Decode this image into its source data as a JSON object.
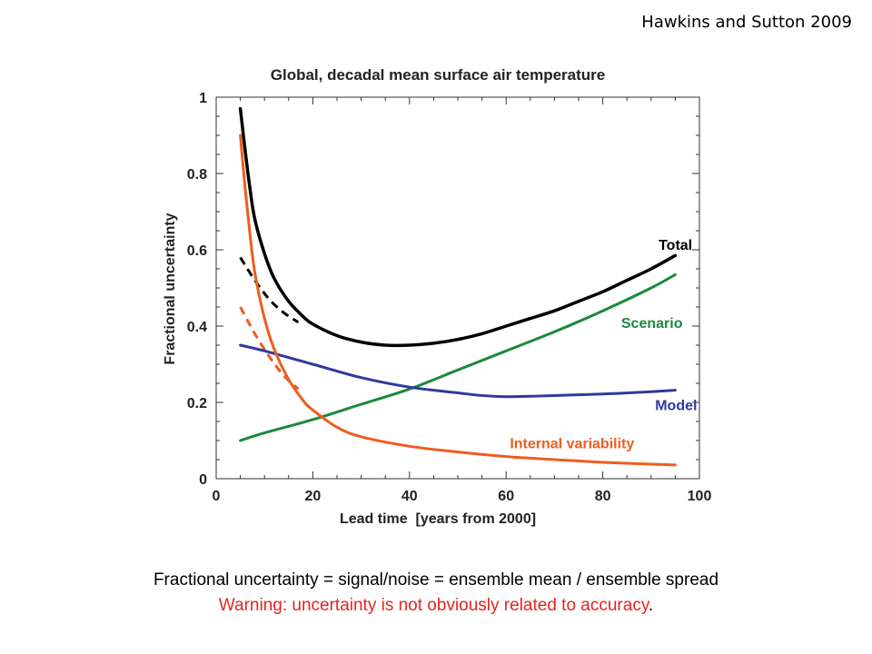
{
  "citation": "Hawkins and Sutton 2009",
  "captions": {
    "line1": "Fractional uncertainty = signal/noise = ensemble mean / ensemble spread",
    "line2": "Warning: uncertainty is not obviously related to accuracy",
    "line2_end": "."
  },
  "colors": {
    "total": "#000000",
    "scenario": "#1a8a3c",
    "model": "#2e3a9e",
    "internal": "#ee5d1f",
    "warning": "#e8231e"
  },
  "chart_data": {
    "type": "line",
    "title": "Global, decadal mean surface air temperature",
    "xlabel": "Lead time  [years from 2000]",
    "ylabel": "Fractional uncertainty",
    "xlim": [
      0,
      100
    ],
    "ylim": [
      0,
      1
    ],
    "xticks": [
      0,
      20,
      40,
      60,
      80,
      100
    ],
    "yticks": [
      0,
      0.2,
      0.4,
      0.6,
      0.8,
      1
    ],
    "xtick_labels": [
      "0",
      "20",
      "40",
      "60",
      "80",
      "100"
    ],
    "ytick_labels": [
      "0",
      "0.2",
      "0.4",
      "0.6",
      "0.8",
      "1"
    ],
    "grid": false,
    "series": [
      {
        "name": "Total",
        "color_key": "total",
        "x": [
          5,
          6,
          7,
          8,
          10,
          12,
          15,
          18,
          20,
          25,
          30,
          35,
          40,
          45,
          50,
          55,
          60,
          65,
          70,
          75,
          80,
          85,
          90,
          95
        ],
        "y": [
          0.97,
          0.86,
          0.76,
          0.68,
          0.59,
          0.525,
          0.465,
          0.425,
          0.405,
          0.375,
          0.358,
          0.35,
          0.35,
          0.355,
          0.365,
          0.38,
          0.4,
          0.42,
          0.44,
          0.465,
          0.49,
          0.52,
          0.55,
          0.585
        ]
      },
      {
        "name": "Scenario",
        "color_key": "scenario",
        "x": [
          5,
          10,
          20,
          30,
          40,
          50,
          60,
          70,
          80,
          90,
          95
        ],
        "y": [
          0.1,
          0.12,
          0.155,
          0.195,
          0.235,
          0.285,
          0.335,
          0.385,
          0.44,
          0.5,
          0.535
        ]
      },
      {
        "name": "Model",
        "color_key": "model",
        "x": [
          5,
          10,
          20,
          30,
          40,
          50,
          55,
          60,
          65,
          70,
          80,
          90,
          95
        ],
        "y": [
          0.35,
          0.335,
          0.3,
          0.265,
          0.24,
          0.225,
          0.218,
          0.215,
          0.216,
          0.218,
          0.222,
          0.228,
          0.232
        ]
      },
      {
        "name": "Internal variability",
        "color_key": "internal",
        "x": [
          5,
          6,
          7,
          8,
          10,
          12,
          15,
          18,
          20,
          25,
          30,
          40,
          50,
          60,
          70,
          80,
          90,
          95
        ],
        "y": [
          0.9,
          0.76,
          0.64,
          0.54,
          0.42,
          0.34,
          0.26,
          0.205,
          0.18,
          0.135,
          0.11,
          0.085,
          0.07,
          0.058,
          0.05,
          0.043,
          0.038,
          0.036
        ]
      }
    ],
    "dashed_series": [
      {
        "color_key": "total",
        "x": [
          5,
          8,
          11,
          14,
          17
        ],
        "y": [
          0.58,
          0.52,
          0.47,
          0.435,
          0.41
        ]
      },
      {
        "color_key": "internal",
        "x": [
          5,
          8,
          11,
          14,
          17
        ],
        "y": [
          0.45,
          0.38,
          0.32,
          0.27,
          0.235
        ]
      }
    ],
    "annotations": [
      {
        "text": "Total",
        "x": 91,
        "y": 0.6,
        "color_key": "total"
      },
      {
        "text": "Scenario",
        "x": 89,
        "y": 0.395,
        "color_key": "scenario"
      },
      {
        "text": "Model",
        "x": 92,
        "y": 0.18,
        "color_key": "model"
      },
      {
        "text": "Internal variability",
        "x": 79,
        "y": 0.08,
        "color_key": "internal"
      }
    ]
  }
}
